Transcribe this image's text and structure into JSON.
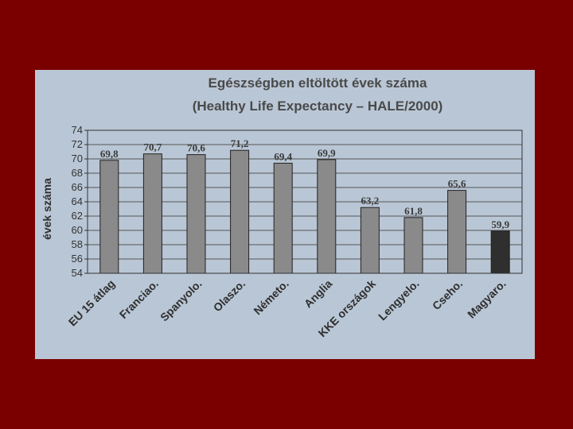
{
  "chart_data": {
    "type": "bar",
    "title": "Egészségben eltöltött évek száma",
    "subtitle": "(Healthy Life Expectancy – HALE/2000)",
    "ylabel": "évek száma",
    "xlabel": "",
    "ylim": [
      54,
      74
    ],
    "yticks": [
      54,
      56,
      58,
      60,
      62,
      64,
      66,
      68,
      70,
      72,
      74
    ],
    "grid": true,
    "categories": [
      "EU 15 átlag",
      "Franciao.",
      "Spanyolo.",
      "Olaszo.",
      "Németo.",
      "Anglia",
      "KKE országok",
      "Lengyelo.",
      "Cseho.",
      "Magyaro."
    ],
    "values": [
      69.8,
      70.7,
      70.6,
      71.2,
      69.4,
      69.9,
      63.2,
      61.8,
      65.6,
      59.9
    ],
    "value_labels": [
      "69,8",
      "70,7",
      "70,6",
      "71,2",
      "69,4",
      "69,9",
      "63,2",
      "61,8",
      "65,6",
      "59,9"
    ],
    "colors": {
      "bar": "#8a8a8a",
      "highlight_bar": "#2f2f2f",
      "highlight_category": "Magyaro.",
      "plot_bg": "#b9c6d5",
      "slide_bg": "#7a0000"
    }
  }
}
